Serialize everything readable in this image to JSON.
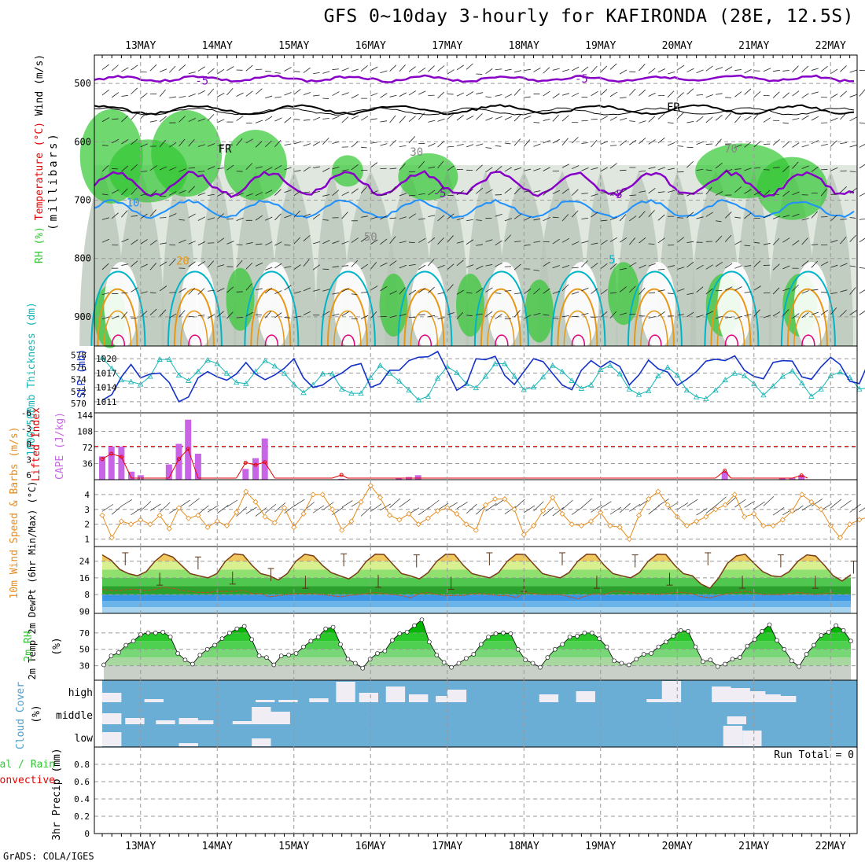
{
  "title": "GFS 0~10day 3-hourly for KAFIRONDA (28E, 12.5S)",
  "credit": "GrADS: COLA/IGES",
  "colors": {
    "temp_purple": "#8800c8",
    "temp_blue": "#1e90ff",
    "temp_cyan": "#00b4c8",
    "temp_orange": "#e89614",
    "temp_magenta": "#e6007a",
    "rh_green": "#32c832",
    "slp_blue": "#1432c8",
    "thick_cyan": "#14b4b4",
    "cape_purple": "#c864e6",
    "li_red": "#e60000",
    "wind_orange": "#e68c1e",
    "cloud_blue": "#6aaed6",
    "cloud_light": "#f0eef4",
    "grid": "#999999"
  },
  "chart_data": [
    {
      "panel": "sounding",
      "type": "contour",
      "ylabel_parts": [
        "RH (%)",
        "Temperature (°C)",
        "Wind (m/s)"
      ],
      "y2label": "(millibars)",
      "y_ticks": [
        "500",
        "600",
        "700",
        "800",
        "900"
      ],
      "ylim": [
        950,
        450
      ],
      "contour_labels": [
        {
          "text": "-5",
          "x_day": 13.8,
          "p": 495,
          "color": "temp_purple"
        },
        {
          "text": "-5",
          "x_day": 18.75,
          "p": 492,
          "color": "temp_purple"
        },
        {
          "text": "FR",
          "x_day": 14.1,
          "p": 612,
          "color": "black"
        },
        {
          "text": "FR",
          "x_day": 19.95,
          "p": 540,
          "color": "black"
        },
        {
          "text": "-5",
          "x_day": 16.9,
          "p": 688,
          "color": "temp_purple"
        },
        {
          "text": "-5",
          "x_day": 19.2,
          "p": 690,
          "color": "temp_purple"
        },
        {
          "text": "10",
          "x_day": 12.9,
          "p": 704,
          "color": "temp_blue"
        },
        {
          "text": "5",
          "x_day": 19.15,
          "p": 802,
          "color": "temp_cyan"
        },
        {
          "text": "20",
          "x_day": 13.55,
          "p": 804,
          "color": "temp_orange"
        },
        {
          "text": "30",
          "x_day": 16.6,
          "p": 617,
          "color": "gray"
        },
        {
          "text": "70",
          "x_day": 20.7,
          "p": 612,
          "color": "gray"
        },
        {
          "text": "50",
          "x_day": 16.0,
          "p": 763,
          "color": "gray"
        }
      ]
    },
    {
      "panel": "slp_thickness",
      "type": "line",
      "ylabel_left": "1000-500mb Thickness (dm)",
      "ylabel_right": "SLP (mb)",
      "left_ticks": [
        "570",
        "572",
        "574",
        "576",
        "578"
      ],
      "left_lim": [
        569.5,
        579
      ],
      "right_ticks": [
        "1011",
        "1014",
        "1017",
        "1020"
      ],
      "right_lim": [
        1010,
        1022
      ],
      "series": [
        {
          "name": "SLP",
          "axis": "right",
          "values": [
            1011.3,
            1012.5,
            1016.2,
            1018.8,
            1016,
            1016.8,
            1017,
            1015,
            1011,
            1012,
            1016,
            1017.3,
            1016.2,
            1015.5,
            1016.8,
            1019.2,
            1016.8,
            1015.6,
            1016.6,
            1018,
            1020,
            1016,
            1014,
            1014.5,
            1016,
            1017,
            1018.5,
            1019,
            1014,
            1014.8,
            1017.6,
            1017.6,
            1019.6,
            1020.3,
            1020.4,
            1021.5,
            1017.5,
            1013.4,
            1014.7,
            1020,
            1019.8,
            1020.5,
            1016.5,
            1014.6,
            1017.3,
            1020,
            1019.4,
            1016.9,
            1014.5,
            1013.5,
            1017.6,
            1019.6,
            1018.2,
            1019.5,
            1018.4,
            1014.5,
            1016.6,
            1019.7,
            1017.9,
            1017.2,
            1014.4,
            1015.7,
            1017.3,
            1019.5,
            1019.9,
            1019.6,
            1020.6,
            1017.6,
            1016.3,
            1015.8,
            1019.2,
            1019.6,
            1019.5,
            1016.2,
            1015.7,
            1018.3,
            1020.3,
            1018.8,
            1015.3,
            1014.8,
            1019.4,
            1019.8,
            1019.4,
            1020.4
          ]
        },
        {
          "name": "Thickness",
          "axis": "left",
          "values": [
            577.6,
            575.8,
            573.9,
            573.6,
            573.2,
            574.5,
            577.3,
            577.3,
            574.7,
            573.8,
            575.3,
            577.2,
            576.6,
            575,
            573.5,
            573.3,
            575.3,
            577.1,
            576.2,
            575,
            573.2,
            571.8,
            573.1,
            574.9,
            574.9,
            572.4,
            571.7,
            571.7,
            574.3,
            576.3,
            575,
            573.7,
            572.2,
            570.6,
            571.2,
            574.2,
            576.1,
            575.1,
            573.3,
            572.6,
            574.5,
            576.6,
            576.6,
            574.5,
            572.3,
            572.7,
            574.4,
            576.3,
            575.3,
            573.8,
            572.5,
            573.1,
            575.6,
            576.3,
            574.9,
            572.4,
            571.5,
            572.1,
            574.6,
            576,
            574.7,
            572.2,
            571.1,
            570.8,
            572.2,
            573.9,
            575,
            574.6,
            573.3,
            571.4,
            572.9,
            574.5,
            575.4,
            573.4,
            571.2,
            572.4,
            574.6,
            575.2,
            574.3,
            572.4,
            572.6,
            574.8,
            575.1,
            573.2
          ]
        }
      ]
    },
    {
      "panel": "cape_li",
      "type": "bar",
      "ylabel_left": "Lifted Index",
      "ylabel_right": "CAPE (J/kg)",
      "left_ticks": [
        "6",
        "3",
        "0",
        "-3",
        "-6"
      ],
      "right_ticks": [
        "36",
        "72",
        "108",
        "144"
      ],
      "cape_bars": [
        {
          "d": 12.5,
          "v": 52
        },
        {
          "d": 12.62,
          "v": 74
        },
        {
          "d": 12.75,
          "v": 74
        },
        {
          "d": 12.88,
          "v": 18
        },
        {
          "d": 13.0,
          "v": 10
        },
        {
          "d": 13.37,
          "v": 34
        },
        {
          "d": 13.5,
          "v": 80
        },
        {
          "d": 13.62,
          "v": 134
        },
        {
          "d": 13.75,
          "v": 58
        },
        {
          "d": 14.37,
          "v": 24
        },
        {
          "d": 14.5,
          "v": 48
        },
        {
          "d": 14.62,
          "v": 92
        },
        {
          "d": 15.62,
          "v": 2
        },
        {
          "d": 16.37,
          "v": 4
        },
        {
          "d": 16.5,
          "v": 6
        },
        {
          "d": 16.62,
          "v": 10
        },
        {
          "d": 20.62,
          "v": 18
        },
        {
          "d": 21.37,
          "v": 4
        },
        {
          "d": 21.5,
          "v": 4
        },
        {
          "d": 21.62,
          "v": 10
        }
      ],
      "li_points": [
        {
          "d": 12.5,
          "v": 2.4
        },
        {
          "d": 12.62,
          "v": 1.4
        },
        {
          "d": 12.75,
          "v": 2.0
        },
        {
          "d": 12.88,
          "v": 6.0
        },
        {
          "d": 13.37,
          "v": 6.0
        },
        {
          "d": 13.5,
          "v": 2.4
        },
        {
          "d": 13.62,
          "v": 0.5
        },
        {
          "d": 13.75,
          "v": 6.0
        },
        {
          "d": 14.25,
          "v": 6.0
        },
        {
          "d": 14.37,
          "v": 3.1
        },
        {
          "d": 14.5,
          "v": 3.5
        },
        {
          "d": 14.62,
          "v": 3.0
        },
        {
          "d": 14.75,
          "v": 6.0
        },
        {
          "d": 15.5,
          "v": 6.0
        },
        {
          "d": 15.62,
          "v": 5.4
        },
        {
          "d": 15.7,
          "v": 6.0
        },
        {
          "d": 20.5,
          "v": 6.0
        },
        {
          "d": 20.62,
          "v": 4.6
        },
        {
          "d": 20.7,
          "v": 6.0
        },
        {
          "d": 21.5,
          "v": 6.0
        },
        {
          "d": 21.62,
          "v": 5.5
        },
        {
          "d": 21.7,
          "v": 6.0
        }
      ]
    },
    {
      "panel": "wind10m",
      "type": "line",
      "ylabel": "10m Wind Speed & Barbs (m/s)",
      "y_ticks": [
        "1",
        "2",
        "3",
        "4"
      ],
      "ylim": [
        0.5,
        5
      ],
      "values": [
        2.6,
        1.1,
        2.2,
        2.0,
        2.3,
        2.0,
        2.6,
        1.7,
        3.1,
        2.4,
        2.6,
        1.8,
        2.2,
        1.9,
        2.8,
        4.2,
        3.5,
        2.5,
        2.1,
        3.1,
        1.8,
        2.7,
        4.0,
        4.0,
        3.0,
        1.6,
        2.2,
        3.5,
        4.6,
        3.8,
        2.6,
        2.3,
        2.7,
        2.0,
        2.4,
        2.9,
        3.1,
        2.7,
        2.0,
        1.6,
        3.3,
        3.7,
        3.7,
        3.0,
        1.3,
        1.9,
        2.9,
        3.8,
        2.7,
        2.0,
        1.9,
        2.2,
        2.8,
        1.9,
        1.8,
        1.0,
        2.6,
        3.7,
        4.2,
        3.3,
        2.5,
        1.9,
        2.2,
        2.5,
        3.0,
        3.3,
        4.0,
        2.5,
        2.7,
        1.9,
        1.9,
        2.3,
        2.9,
        4.0,
        3.5,
        3.0,
        1.9,
        1.1,
        2.0,
        2.3,
        2.5,
        2.7,
        2.1,
        3.0
      ]
    },
    {
      "panel": "temp2m",
      "type": "area",
      "ylabel": "2m Temp 2m DewPt (6hr Min/Max) (°C)",
      "y_ticks": [
        "90",
        "8",
        "16",
        "24"
      ],
      "ylim": [
        -1,
        31
      ],
      "temp": [
        27.0,
        24.5,
        20,
        18,
        17,
        19,
        24,
        27.5,
        26,
        22,
        18,
        17,
        16,
        18,
        24,
        27.5,
        27,
        22,
        18,
        17,
        15,
        18,
        24,
        27.3,
        26.5,
        22,
        18.5,
        17,
        15.5,
        18.5,
        24,
        27.3,
        27.2,
        22.5,
        18,
        17,
        15.5,
        18.5,
        24,
        27.3,
        27.2,
        22,
        18,
        17,
        16,
        18.5,
        24,
        27.3,
        27.2,
        22.5,
        18,
        17,
        16,
        18.5,
        24,
        27.3,
        27.2,
        22,
        18,
        17,
        16,
        18.5,
        24,
        27.3,
        27.2,
        22,
        18,
        17,
        13,
        11,
        16,
        23,
        26.5,
        27.3,
        23,
        19,
        17,
        16.5,
        19,
        24,
        27,
        26.5,
        22,
        17,
        14.5,
        17.5
      ],
      "dewpt": [
        10.5,
        10,
        10,
        10.5,
        10.5,
        10,
        10.5,
        11.5,
        11,
        10,
        9.5,
        9,
        9,
        9.5,
        9.5,
        9.5,
        10,
        8.5,
        8.5,
        7,
        7.5,
        8,
        8.5,
        8.5,
        8.5,
        8,
        7.5,
        7,
        7.5,
        8,
        8.5,
        9,
        8.5,
        8,
        7.5,
        6.5,
        8.5,
        9,
        8,
        7.5,
        7.5,
        7.5,
        8.5,
        8.5,
        8,
        7.5,
        7.5,
        6.5,
        9,
        8.5,
        8,
        8,
        8,
        7,
        6,
        7.5,
        8.5,
        8,
        9.5,
        9.5,
        9,
        8.5,
        8.5,
        8,
        8.5,
        9,
        9,
        8.5,
        7,
        6.5,
        7.5,
        8.5,
        9,
        9.5,
        9,
        8,
        8,
        8,
        8.5,
        9,
        8.5,
        8,
        8.5,
        9
      ],
      "max_bars": [
        28,
        26,
        20.5,
        27.5,
        27,
        28,
        28,
        27,
        28,
        27,
        24
      ],
      "min_bars": [
        15.5,
        16,
        14,
        14.5,
        13.5,
        12.5,
        14,
        15.5,
        14,
        14,
        13
      ]
    },
    {
      "panel": "rh2m",
      "type": "area",
      "ylabel": "2m RH (%)",
      "y_ticks": [
        "30",
        "50",
        "70"
      ],
      "ylim": [
        20,
        90
      ],
      "values": [
        31,
        42,
        46,
        55,
        60,
        68,
        70,
        70,
        71,
        65,
        45,
        37,
        32,
        43,
        50,
        55,
        63,
        70,
        75,
        78,
        62,
        42,
        40,
        31,
        42,
        43,
        45,
        53,
        60,
        65,
        75,
        77,
        56,
        38,
        33,
        27,
        38,
        45,
        48,
        61,
        69,
        71,
        79,
        86,
        59,
        43,
        34,
        28,
        33,
        39,
        44,
        56,
        65,
        69,
        70,
        69,
        50,
        37,
        33,
        28,
        40,
        50,
        56,
        65,
        66,
        70,
        70,
        63,
        53,
        36,
        33,
        31,
        38,
        44,
        45,
        53,
        59,
        66,
        73,
        72,
        53,
        35,
        37,
        29,
        32,
        38,
        40,
        54,
        62,
        72,
        80,
        61,
        50,
        36,
        29,
        44,
        55,
        67,
        71,
        79,
        73,
        60
      ]
    },
    {
      "panel": "cloud",
      "type": "heatmap",
      "ylabel": "Cloud Cover (%)",
      "levels": [
        "high",
        "middle",
        "low"
      ]
    },
    {
      "panel": "precip",
      "type": "bar",
      "ylabel_left": "Total / Rain Convective",
      "ylabel": "3hr Precip (mm)",
      "y_ticks": [
        "0",
        "0.2",
        "0.4",
        "0.6",
        "0.8"
      ],
      "ylim": [
        0,
        1
      ],
      "run_total": "Run Total = 0"
    }
  ],
  "x_axis": {
    "dates": [
      "13MAY",
      "14MAY",
      "15MAY",
      "16MAY",
      "17MAY",
      "18MAY",
      "19MAY",
      "20MAY",
      "21MAY",
      "22MAY"
    ]
  }
}
